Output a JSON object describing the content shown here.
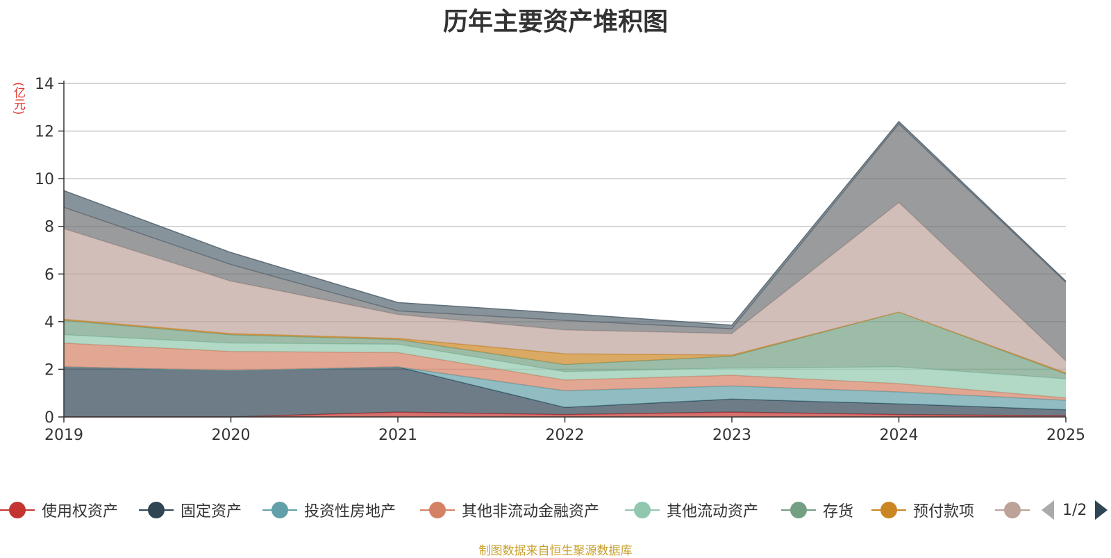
{
  "chart_data": {
    "type": "area",
    "stacked": true,
    "title": "历年主要资产堆积图",
    "ylabel": "(亿元)",
    "xlabel": "",
    "x": [
      "2019",
      "2020",
      "2021",
      "2022",
      "2023",
      "2024",
      "2025"
    ],
    "ylim": [
      0,
      14
    ],
    "yticks": [
      0,
      2,
      4,
      6,
      8,
      10,
      12,
      14
    ],
    "grid": true,
    "series": [
      {
        "name": "使用权资产",
        "color": "#c23531",
        "values": [
          0.0,
          0.0,
          0.2,
          0.1,
          0.2,
          0.1,
          0.05
        ]
      },
      {
        "name": "固定资产",
        "color": "#2f4554",
        "values": [
          2.1,
          1.95,
          1.9,
          0.3,
          0.55,
          0.45,
          0.25
        ]
      },
      {
        "name": "投资性房地产",
        "color": "#61a0a8",
        "values": [
          0.0,
          0.0,
          0.0,
          0.7,
          0.55,
          0.5,
          0.4
        ]
      },
      {
        "name": "其他非流动金融资产",
        "color": "#d48265",
        "values": [
          1.0,
          0.8,
          0.6,
          0.45,
          0.45,
          0.35,
          0.1
        ]
      },
      {
        "name": "其他流动资产",
        "color": "#91c7ae",
        "values": [
          0.35,
          0.35,
          0.35,
          0.35,
          0.3,
          0.7,
          0.8
        ]
      },
      {
        "name": "存货",
        "color": "#749f83",
        "values": [
          0.6,
          0.35,
          0.2,
          0.3,
          0.5,
          2.3,
          0.2
        ]
      },
      {
        "name": "预付款项",
        "color": "#ca8622",
        "values": [
          0.05,
          0.05,
          0.05,
          0.45,
          0.05,
          0.0,
          0.05
        ]
      },
      {
        "name": "",
        "color": "#bda29a",
        "values": [
          3.8,
          2.2,
          1.0,
          1.0,
          0.9,
          4.6,
          0.5
        ]
      },
      {
        "name": "",
        "color": "#6e7074",
        "values": [
          0.9,
          0.7,
          0.15,
          0.4,
          0.2,
          3.3,
          3.3
        ]
      },
      {
        "name": "",
        "color": "#546570",
        "values": [
          0.7,
          0.5,
          0.35,
          0.3,
          0.15,
          0.1,
          0.05
        ]
      }
    ],
    "legend": {
      "placement": "bottom",
      "page": "1/2"
    },
    "source_note": "制图数据来自恒生聚源数据库"
  }
}
